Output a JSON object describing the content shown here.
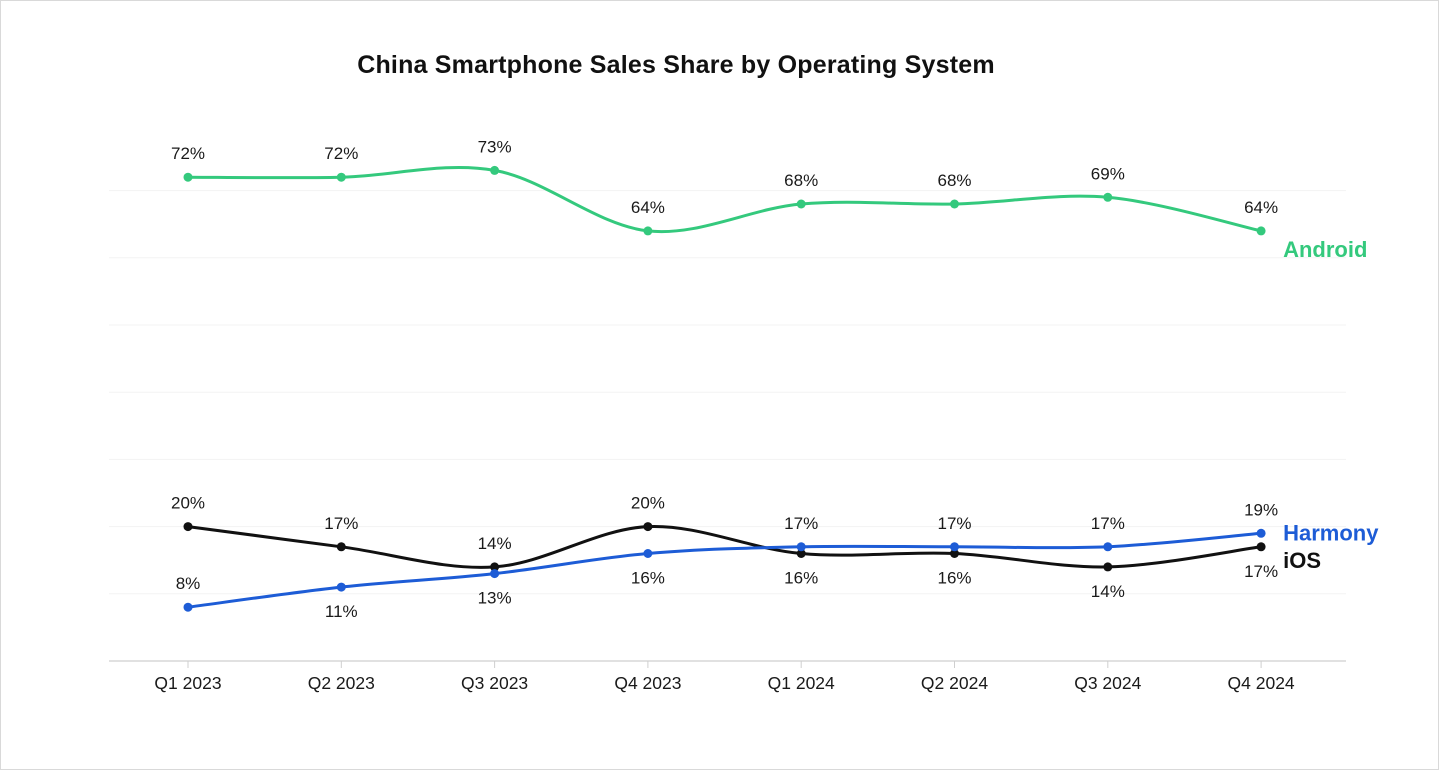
{
  "window": {
    "title": "China Smartphone Sales Share by Operating System"
  },
  "chart_data": {
    "type": "line",
    "title": "China Smartphone Sales Share by Operating System",
    "xlabel": "",
    "ylabel": "",
    "unit": "%",
    "ylim": [
      0,
      80
    ],
    "grid": "horizontal-light",
    "legend_position": "line-end-labels",
    "categories": [
      "Q1 2023",
      "Q2 2023",
      "Q3 2023",
      "Q4 2023",
      "Q1 2024",
      "Q2 2024",
      "Q3 2024",
      "Q4 2024"
    ],
    "series": [
      {
        "name": "Android",
        "color": "#34c97d",
        "values": [
          72,
          72,
          73,
          64,
          68,
          68,
          69,
          64
        ],
        "label_positions": [
          "above",
          "above",
          "above",
          "above",
          "above",
          "above",
          "above",
          "above"
        ],
        "end_label_dy": 26
      },
      {
        "name": "iOS",
        "color": "#111111",
        "values": [
          20,
          17,
          14,
          20,
          16,
          16,
          14,
          17
        ],
        "label_positions": [
          "above",
          "above",
          "above",
          "above",
          "below",
          "below",
          "below",
          "below"
        ],
        "end_label_dy": 21
      },
      {
        "name": "Harmony",
        "color": "#1d5cd6",
        "values": [
          8,
          11,
          13,
          16,
          17,
          17,
          17,
          19
        ],
        "label_positions": [
          "above",
          "below",
          "below",
          "below",
          "above",
          "above",
          "above",
          "above"
        ],
        "end_label_dy": 7
      }
    ]
  }
}
